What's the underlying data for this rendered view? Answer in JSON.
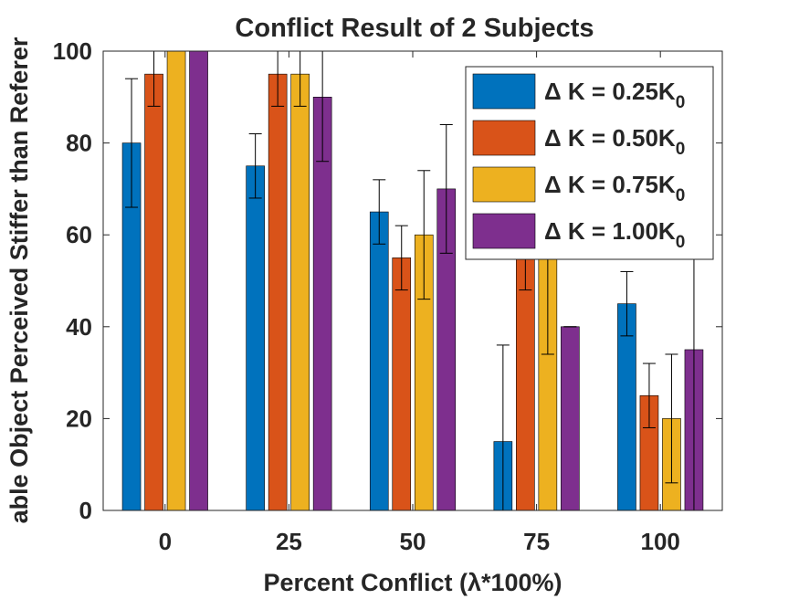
{
  "chart_data": {
    "type": "bar",
    "title": "Conflict Result of 2 Subjects",
    "xlabel": "Percent Conflict (λ*100%)",
    "ylabel": "able Object Perceived Stiffer than Referer",
    "categories": [
      "0",
      "25",
      "50",
      "75",
      "100"
    ],
    "ylim": [
      0,
      100
    ],
    "yticks": [
      "0",
      "20",
      "40",
      "60",
      "80",
      "100"
    ],
    "grid": false,
    "legend_position": "top-right",
    "series": [
      {
        "name": "Δ K = 0.25K",
        "subscript": "0",
        "color": "#0072BD",
        "values": [
          80,
          75,
          65,
          15,
          45
        ],
        "err_low": [
          66,
          68,
          58,
          0,
          38
        ],
        "err_high": [
          94,
          82,
          72,
          36,
          52
        ]
      },
      {
        "name": "Δ K = 0.50K",
        "subscript": "0",
        "color": "#D95319",
        "values": [
          95,
          95,
          55,
          55,
          25
        ],
        "err_low": [
          88,
          88,
          48,
          48,
          18
        ],
        "err_high": [
          100,
          100,
          62,
          62,
          32
        ]
      },
      {
        "name": "Δ K = 0.75K",
        "subscript": "0",
        "color": "#EDB120",
        "values": [
          100,
          95,
          60,
          55,
          20
        ],
        "err_low": [
          100,
          88,
          46,
          34,
          6
        ],
        "err_high": [
          100,
          100,
          74,
          76,
          34
        ]
      },
      {
        "name": "Δ K = 1.00K",
        "subscript": "0",
        "color": "#7E2F8E",
        "values": [
          100,
          90,
          70,
          40,
          35
        ],
        "err_low": [
          100,
          76,
          56,
          40,
          0
        ],
        "err_high": [
          100,
          100,
          84,
          40,
          70
        ]
      }
    ]
  }
}
